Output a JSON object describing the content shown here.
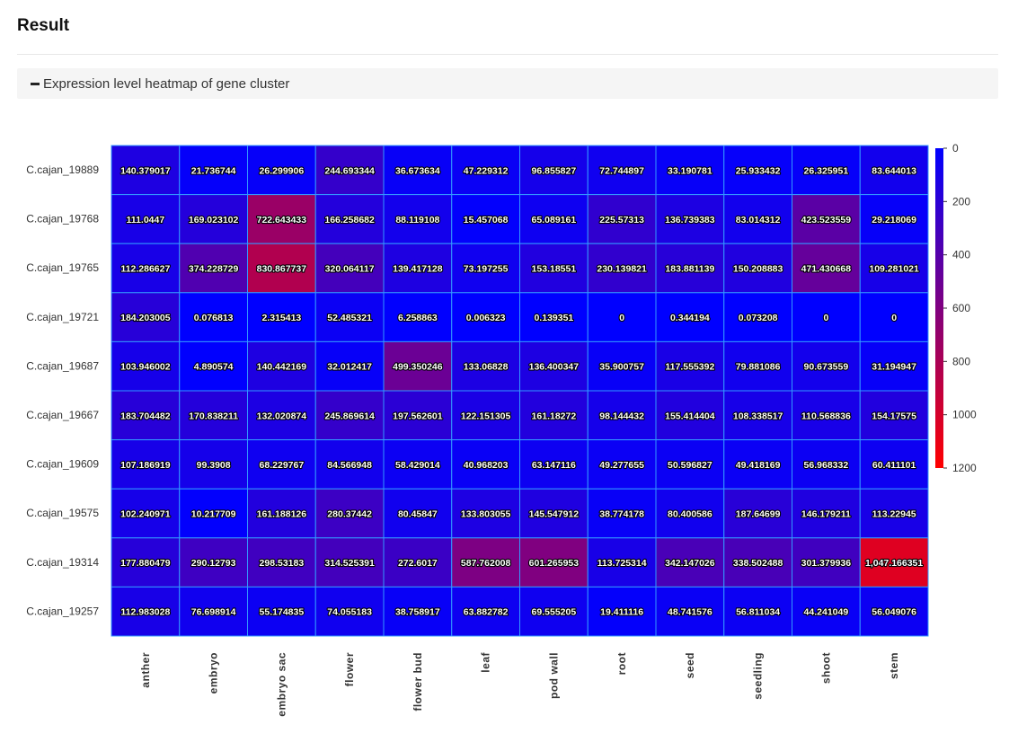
{
  "page": {
    "title": "Result",
    "panel_title": "Expression level heatmap of gene cluster"
  },
  "colors": {
    "low": "#0000ff",
    "mid": "#800080",
    "high": "#ff0000",
    "cell_border": "#3399ff"
  },
  "chart_data": {
    "type": "heatmap",
    "title": "",
    "rows": [
      "C.cajan_19889",
      "C.cajan_19768",
      "C.cajan_19765",
      "C.cajan_19721",
      "C.cajan_19687",
      "C.cajan_19667",
      "C.cajan_19609",
      "C.cajan_19575",
      "C.cajan_19314",
      "C.cajan_19257"
    ],
    "columns": [
      "anther",
      "embryo",
      "embryo sac",
      "flower",
      "flower bud",
      "leaf",
      "pod wall",
      "root",
      "seed",
      "seedling",
      "shoot",
      "stem"
    ],
    "values": [
      [
        "140.379017",
        "21.736744",
        "26.299906",
        "244.693344",
        "36.673634",
        "47.229312",
        "96.855827",
        "72.744897",
        "33.190781",
        "25.933432",
        "26.325951",
        "83.644013"
      ],
      [
        "111.0447",
        "169.023102",
        "722.643433",
        "166.258682",
        "88.119108",
        "15.457068",
        "65.089161",
        "225.57313",
        "136.739383",
        "83.014312",
        "423.523559",
        "29.218069"
      ],
      [
        "112.286627",
        "374.228729",
        "830.867737",
        "320.064117",
        "139.417128",
        "73.197255",
        "153.18551",
        "230.139821",
        "183.881139",
        "150.208883",
        "471.430668",
        "109.281021"
      ],
      [
        "184.203005",
        "0.076813",
        "2.315413",
        "52.485321",
        "6.258863",
        "0.006323",
        "0.139351",
        "0",
        "0.344194",
        "0.073208",
        "0",
        "0"
      ],
      [
        "103.946002",
        "4.890574",
        "140.442169",
        "32.012417",
        "499.350246",
        "133.06828",
        "136.400347",
        "35.900757",
        "117.555392",
        "79.881086",
        "90.673559",
        "31.194947"
      ],
      [
        "183.704482",
        "170.838211",
        "132.020874",
        "245.869614",
        "197.562601",
        "122.151305",
        "161.18272",
        "98.144432",
        "155.414404",
        "108.338517",
        "110.568836",
        "154.17575"
      ],
      [
        "107.186919",
        "99.3908",
        "68.229767",
        "84.566948",
        "58.429014",
        "40.968203",
        "63.147116",
        "49.277655",
        "50.596827",
        "49.418169",
        "56.968332",
        "60.411101"
      ],
      [
        "102.240971",
        "10.217709",
        "161.188126",
        "280.37442",
        "80.45847",
        "133.803055",
        "145.547912",
        "38.774178",
        "80.400586",
        "187.64699",
        "146.179211",
        "113.22945"
      ],
      [
        "177.880479",
        "290.12793",
        "298.53183",
        "314.525391",
        "272.6017",
        "587.762008",
        "601.265953",
        "113.725314",
        "342.147026",
        "338.502488",
        "301.379936",
        "1,047.166351"
      ],
      [
        "112.983028",
        "76.698914",
        "55.174835",
        "74.055183",
        "38.758917",
        "63.882782",
        "69.555205",
        "19.411116",
        "48.741576",
        "56.811034",
        "44.241049",
        "56.049076"
      ]
    ],
    "color_scale": {
      "min": 0,
      "max": 1200,
      "ticks": [
        "0",
        "200",
        "400",
        "600",
        "800",
        "1000",
        "1200"
      ],
      "tick_values": [
        0,
        200,
        400,
        600,
        800,
        1000,
        1200
      ]
    }
  }
}
